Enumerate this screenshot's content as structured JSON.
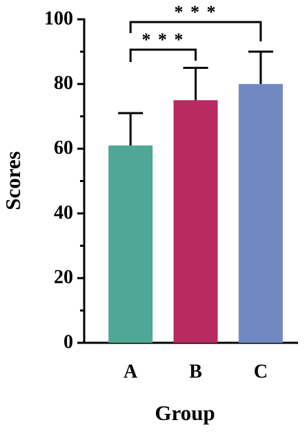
{
  "chart_data": {
    "type": "bar",
    "x_label": "Group",
    "y_label": "Scores",
    "categories": [
      "A",
      "B",
      "C"
    ],
    "values": [
      61,
      75,
      80
    ],
    "errors": [
      10,
      10,
      10
    ],
    "colors": [
      "#4fa895",
      "#b82b62",
      "#7189c0"
    ],
    "ylim": [
      0,
      100
    ],
    "yticks": [
      0,
      20,
      40,
      60,
      80,
      100
    ],
    "minor_yticks": [
      10,
      30,
      50,
      70,
      90
    ],
    "significance": [
      {
        "from": 0,
        "to": 1,
        "label": "* * *"
      },
      {
        "from": 0,
        "to": 2,
        "label": "* * *"
      }
    ]
  }
}
